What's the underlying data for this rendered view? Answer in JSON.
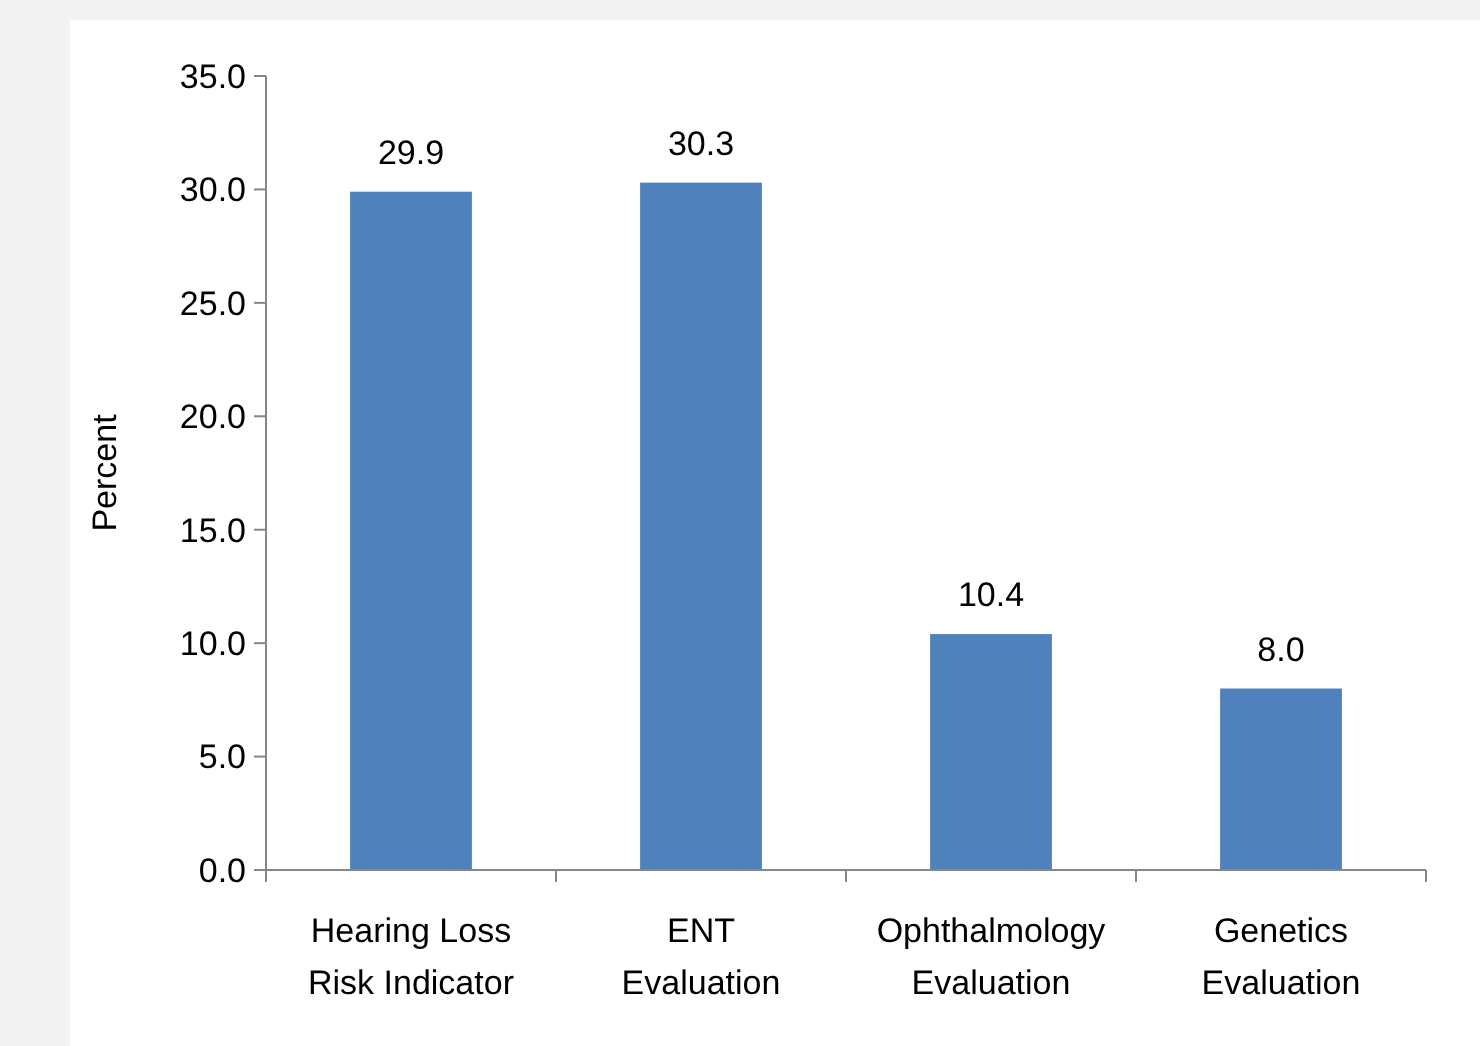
{
  "chart_data": {
    "type": "bar",
    "ylabel": "Percent",
    "categories": [
      "Hearing Loss Risk Indicator",
      "ENT Evaluation",
      "Ophthalmology Evaluation",
      "Genetics Evaluation"
    ],
    "values": [
      29.9,
      30.3,
      10.4,
      8.0
    ],
    "value_labels": [
      "29.9",
      "30.3",
      "10.4",
      "8.0"
    ],
    "color": "#4f81bd",
    "ylim": [
      0,
      35
    ],
    "yticks": [
      {
        "value": 0,
        "label": "0.0"
      },
      {
        "value": 5,
        "label": "5.0"
      },
      {
        "value": 10,
        "label": "10.0"
      },
      {
        "value": 15,
        "label": "15.0"
      },
      {
        "value": 20,
        "label": "20.0"
      },
      {
        "value": 25,
        "label": "25.0"
      },
      {
        "value": 30,
        "label": "30.0"
      },
      {
        "value": 35,
        "label": "35.0"
      }
    ],
    "grid": false
  }
}
